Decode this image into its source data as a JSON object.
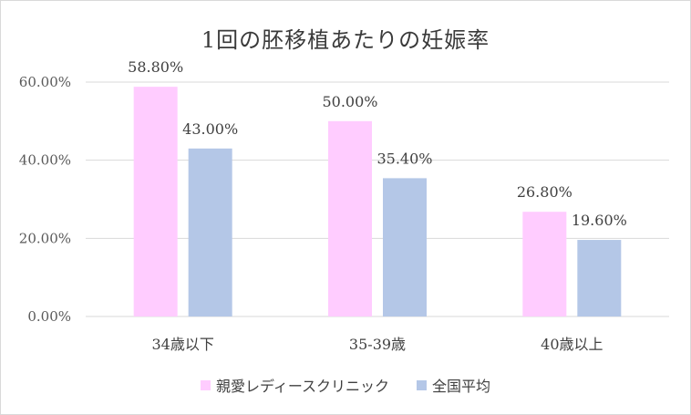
{
  "chart_data": {
    "type": "bar",
    "title": "1回の胚移植あたりの妊娠率",
    "categories": [
      "34歳以下",
      "35-39歳",
      "40歳以上"
    ],
    "series": [
      {
        "name": "親愛レディースクリニック",
        "values": [
          58.8,
          50.0,
          26.8
        ],
        "labels": [
          "58.80%",
          "50.00%",
          "26.80%"
        ],
        "color": "#ffccff"
      },
      {
        "name": "全国平均",
        "values": [
          43.0,
          35.4,
          19.6
        ],
        "labels": [
          "43.00%",
          "35.40%",
          "19.60%"
        ],
        "color": "#b4c7e7"
      }
    ],
    "yticks": [
      "0.00%",
      "20.00%",
      "40.00%",
      "60.00%"
    ],
    "ytick_values": [
      0,
      20,
      40,
      60
    ],
    "ylim": [
      0,
      60
    ],
    "grid": true,
    "legend_position": "bottom"
  }
}
